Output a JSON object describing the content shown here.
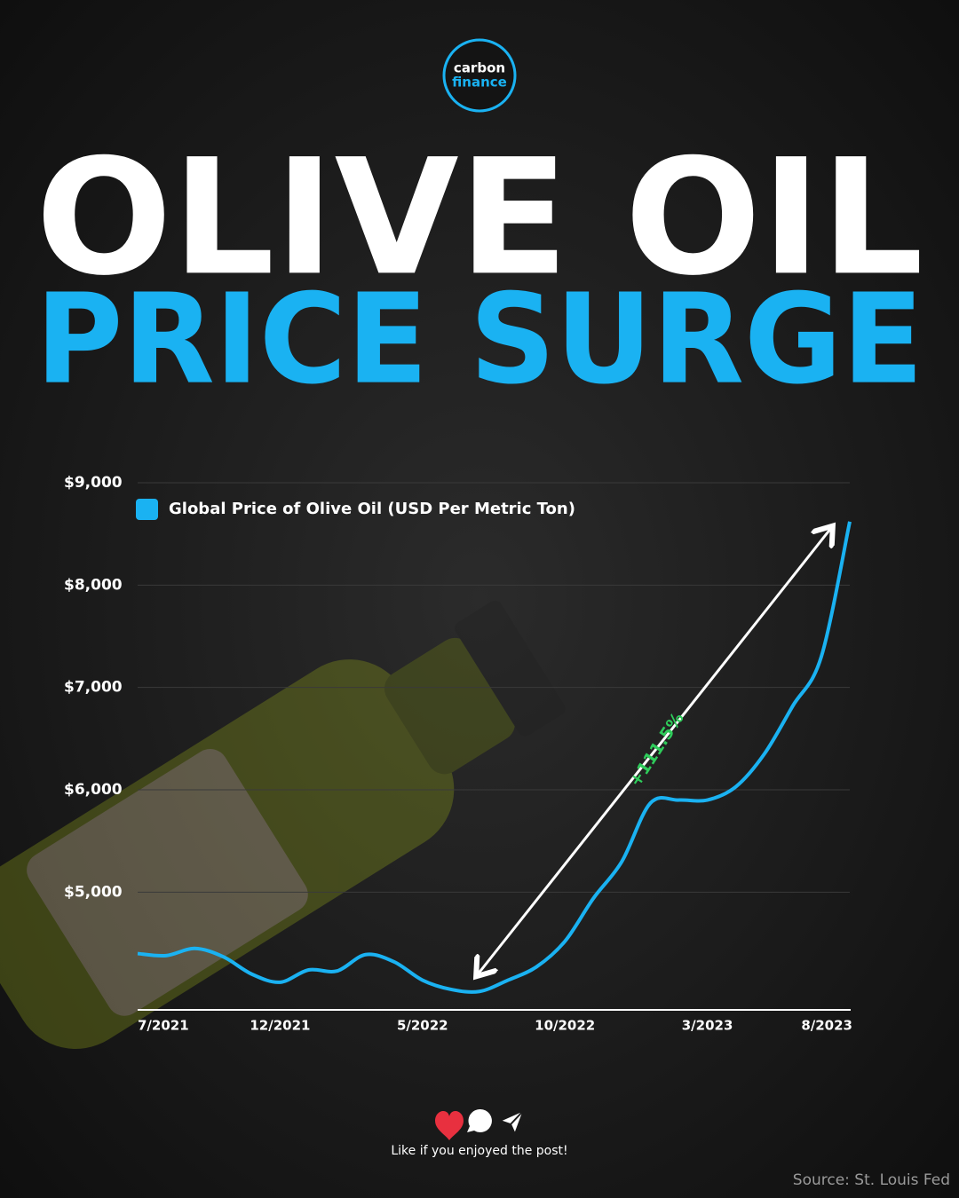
{
  "logo": {
    "line1": "carbon",
    "line2": "finance"
  },
  "chart_data": {
    "type": "line",
    "title": "OLIVE OIL",
    "subtitle": "PRICE SURGE",
    "categories": [
      "7/2021",
      null,
      null,
      null,
      null,
      "12/2021",
      null,
      null,
      null,
      null,
      "5/2022",
      null,
      null,
      null,
      null,
      "10/2022",
      null,
      null,
      null,
      null,
      "3/2023",
      null,
      null,
      null,
      null,
      "8/2023"
    ],
    "series": [
      {
        "name": "Global Price of Olive Oil (USD Per Metric Ton)",
        "color": "#1ab2f2",
        "values": [
          4400,
          4380,
          4450,
          4370,
          4200,
          4120,
          4240,
          4230,
          4390,
          4320,
          4140,
          4050,
          4030,
          4140,
          4270,
          4520,
          4940,
          5300,
          5870,
          5900,
          5900,
          6030,
          6350,
          6820,
          7300,
          8620
        ]
      }
    ],
    "ylim": [
      3850,
      9000
    ],
    "yticks": [
      {
        "value": 5000,
        "label": "$5,000"
      },
      {
        "value": 6000,
        "label": "$6,000"
      },
      {
        "value": 7000,
        "label": "$7,000"
      },
      {
        "value": 8000,
        "label": "$8,000"
      },
      {
        "value": 9000,
        "label": "$9,000"
      }
    ],
    "grid": true,
    "legend": "top-left",
    "annotation": "+111.5%"
  },
  "footer": {
    "cta": "Like if you enjoyed the post!",
    "source": "Source: St. Louis Fed"
  }
}
